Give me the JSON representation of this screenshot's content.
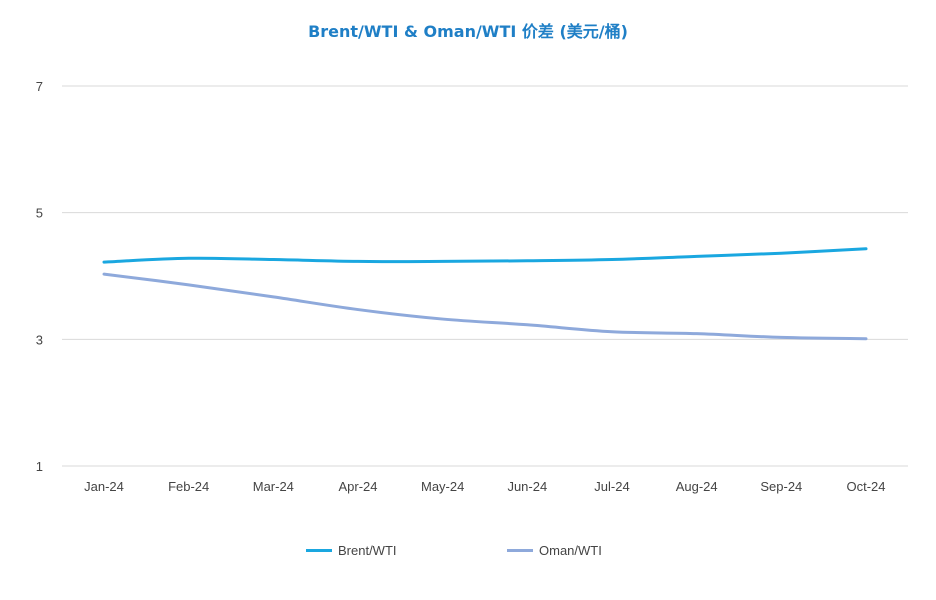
{
  "chart_data": {
    "type": "line",
    "title": "Brent/WTI & Oman/WTI 价差 (美元/桶)",
    "xlabel": "",
    "ylabel": "",
    "categories": [
      "Jan-24",
      "Feb-24",
      "Mar-24",
      "Apr-24",
      "May-24",
      "Jun-24",
      "Jul-24",
      "Aug-24",
      "Sep-24",
      "Oct-24"
    ],
    "yticks": [
      1,
      3,
      5,
      7
    ],
    "ylim": [
      1,
      7
    ],
    "grid": true,
    "legend_position": "bottom",
    "series": [
      {
        "name": "Brent/WTI",
        "color": "#1aa7e0",
        "values": [
          4.22,
          4.28,
          4.26,
          4.23,
          4.23,
          4.24,
          4.26,
          4.31,
          4.36,
          4.43
        ]
      },
      {
        "name": "Oman/WTI",
        "color": "#8ea9db",
        "values": [
          4.03,
          3.86,
          3.67,
          3.47,
          3.32,
          3.23,
          3.12,
          3.09,
          3.03,
          3.01
        ]
      }
    ]
  },
  "colors": {
    "title": "#1f7fc6",
    "grid": "#d9d9d9",
    "tick_text": "#444444"
  }
}
